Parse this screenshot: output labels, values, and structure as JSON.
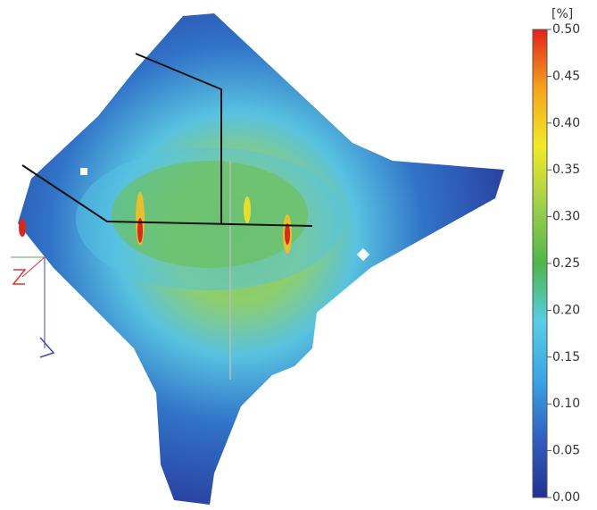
{
  "chart_data": {
    "type": "contour",
    "colorbar_label": "[%]",
    "zlim": [
      0,
      0.5
    ],
    "zticks": [
      {
        "value": 0,
        "label": "0.00"
      },
      0.05,
      {
        "value": 0.1,
        "label": "0.10"
      },
      0.15,
      {
        "value": 0.2,
        "label": "0.20"
      },
      0.25,
      {
        "value": 0.3,
        "label": "0.30"
      },
      0.35,
      {
        "value": 0.4,
        "label": "0.40"
      },
      0.45,
      {
        "value": 0.5,
        "label": "0.50"
      }
    ],
    "colormap": [
      "#23318f",
      "#2f5fc0",
      "#3aa4e6",
      "#58cde6",
      "#4fb64a",
      "#9fd04a",
      "#f2ea28",
      "#f5a31e",
      "#e32119"
    ]
  }
}
